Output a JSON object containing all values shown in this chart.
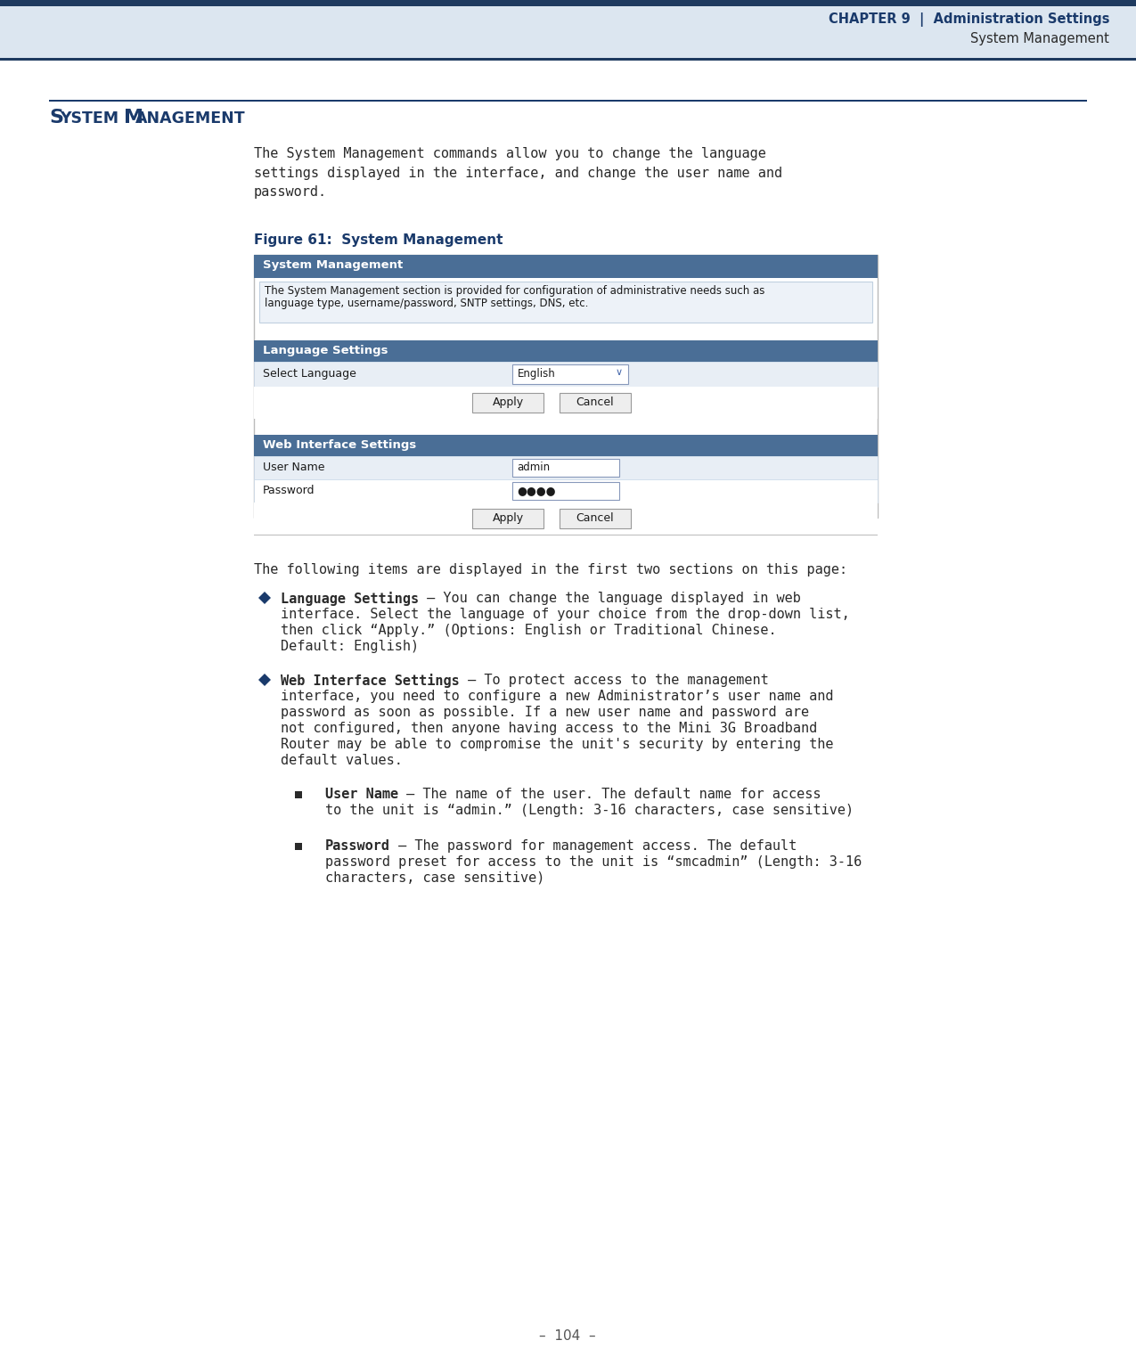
{
  "page_bg": "#ffffff",
  "header_dark_bg": "#1e3a5f",
  "header_light_bg": "#dce6f0",
  "header_title": "CHAPTER 9  |  Administration Settings",
  "header_subtitle": "System Management",
  "header_title_color": "#1a3a6b",
  "header_subtitle_color": "#2a2a2a",
  "section_rule_color": "#1a3a6b",
  "section_heading_S": "S",
  "section_heading_YSTEM": "YSTEM",
  "section_heading_M": "M",
  "section_heading_ANAGEMENT": "ANAGEMENT",
  "section_heading_color": "#1a3a6b",
  "intro_text": "The System Management commands allow you to change the language\nsettings displayed in the interface, and change the user name and\npassword.",
  "figure_caption": "Figure 61:  System Management",
  "figure_caption_color": "#1a3a6b",
  "ui_header_bg": "#4a6e96",
  "ui_header_text_color": "#ffffff",
  "ui_row_bg_light": "#e8eef5",
  "ui_border_color": "#aabbd0",
  "ui_text_color": "#1a1a1a",
  "ui_box_title": "System Management",
  "ui_box_desc_line1": "The System Management section is provided for configuration of administrative needs such as",
  "ui_box_desc_line2": "language type, username/password, SNTP settings, DNS, etc.",
  "ui_lang_section": "Language Settings",
  "ui_lang_label": "Select Language",
  "ui_lang_value": "English",
  "ui_web_section": "Web Interface Settings",
  "ui_username_label": "User Name",
  "ui_username_value": "admin",
  "ui_password_label": "Password",
  "ui_password_value": "●●●●",
  "bullet_color": "#1a3a6b",
  "body_text_color": "#2a2a2a",
  "mono_font": "DejaVu Sans Mono",
  "following_text": "The following items are displayed in the first two sections on this page:",
  "b1_bold": "Language Settings",
  "b1_rest": " — You can change the language displayed in web\ninterface. Select the language of your choice from the drop-down list,\nthen click “Apply.” (Options: English or Traditional Chinese.\nDefault: English)",
  "b2_bold": "Web Interface Settings",
  "b2_rest": " — To protect access to the management\ninterface, you need to configure a new Administrator’s user name and\npassword as soon as possible. If a new user name and password are\nnot configured, then anyone having access to the Mini 3G Broadband\nRouter may be able to compromise the unit's security by entering the\ndefault values.",
  "sb1_bold": "User Name",
  "sb1_rest": " — The name of the user. The default name for access\nto the unit is “admin.” (Length: 3-16 characters, case sensitive)",
  "sb2_bold": "Password",
  "sb2_rest": " — The password for management access. The default\npassword preset for access to the unit is “smcadmin” (Length: 3-16\ncharacters, case sensitive)",
  "footer_text": "–  104  –",
  "page_number_color": "#555555"
}
